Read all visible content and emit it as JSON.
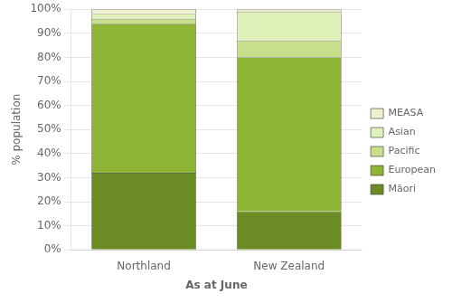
{
  "chart_data": {
    "type": "bar",
    "stacked": true,
    "categories": [
      "Northland",
      "New Zealand"
    ],
    "series": [
      {
        "name": "Māori",
        "color": "#6b8c25",
        "values": [
          32,
          16
        ]
      },
      {
        "name": "European",
        "color": "#8eb535",
        "values": [
          62,
          64
        ]
      },
      {
        "name": "Pacific",
        "color": "#c8e08c",
        "values": [
          2,
          7
        ]
      },
      {
        "name": "Asian",
        "color": "#dff0b8",
        "values": [
          2,
          12
        ]
      },
      {
        "name": "MEASA",
        "color": "#f0f0d0",
        "values": [
          2,
          1
        ]
      }
    ],
    "xlabel": "As at June",
    "ylabel": "% population",
    "ylim": [
      0,
      100
    ],
    "yticks": [
      {
        "value": 0,
        "label": "0%"
      },
      {
        "value": 10,
        "label": "10%"
      },
      {
        "value": 20,
        "label": "20%"
      },
      {
        "value": 30,
        "label": "30%"
      },
      {
        "value": 40,
        "label": "40%"
      },
      {
        "value": 50,
        "label": "50%"
      },
      {
        "value": 60,
        "label": "60%"
      },
      {
        "value": 70,
        "label": "70%"
      },
      {
        "value": 80,
        "label": "80%"
      },
      {
        "value": 90,
        "label": "90%"
      },
      {
        "value": 100,
        "label": "100%"
      }
    ],
    "grid": "y",
    "legend": "right"
  }
}
